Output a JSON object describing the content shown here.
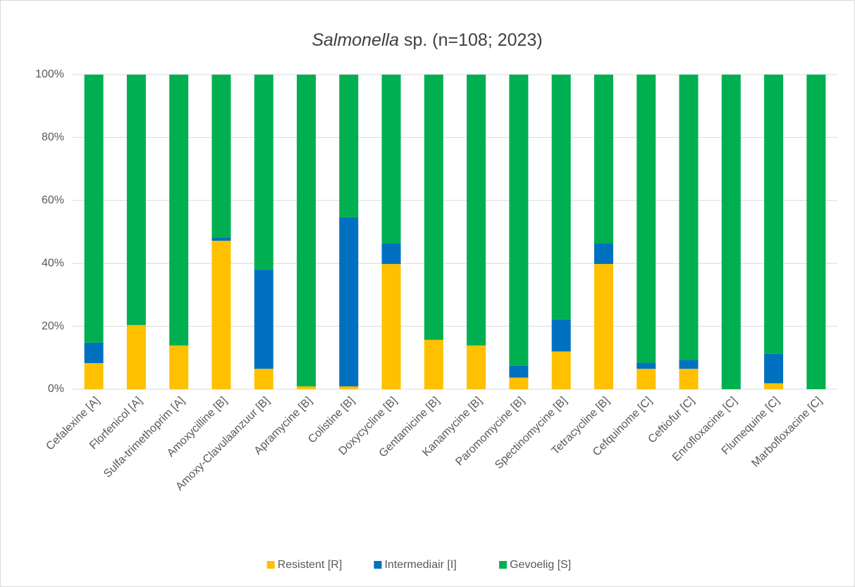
{
  "chart_data": {
    "type": "stacked_bar_100",
    "title": [
      "Salmonella",
      "sp. (n=108; 2023)"
    ],
    "categories": [
      "Cefalexine [A]",
      "Florfenicol [A]",
      "Sulfa-trimethoprim [A]",
      "Amoxycilline  [B]",
      "Amoxy-Clavulaanzuur [B]",
      "Apramycine [B]",
      "Colistine [B]",
      "Doxycycline [B]",
      "Gentamicine [B]",
      "Kanamycine [B]",
      "Paromomycine [B]",
      "Spectinomycine [B]",
      "Tetracycline [B]",
      "Cefquinome [C]",
      "Ceftiofur [C]",
      "Enrofloxacine [C]",
      "Flumequine [C]",
      "Marbofloxacine [C]"
    ],
    "series": [
      {
        "name": "Resistent [R]",
        "color": "#ffc000",
        "values": [
          8.3,
          20.4,
          13.9,
          47.2,
          6.5,
          0.9,
          0.9,
          39.8,
          15.7,
          13.9,
          3.7,
          12.0,
          39.8,
          6.5,
          6.5,
          0,
          1.9,
          0
        ]
      },
      {
        "name": "Intermediair [I]",
        "color": "#0070c0",
        "values": [
          6.5,
          0,
          0,
          0.9,
          31.5,
          0,
          53.7,
          6.5,
          0,
          0,
          3.7,
          10.2,
          6.5,
          1.9,
          2.8,
          0,
          9.3,
          0
        ]
      },
      {
        "name": "Gevoelig [S]",
        "color": "#00b050",
        "values": [
          85.2,
          79.6,
          86.1,
          51.9,
          62.0,
          99.1,
          45.4,
          53.7,
          84.3,
          86.1,
          92.6,
          77.8,
          53.7,
          91.6,
          90.7,
          100,
          88.8,
          100
        ]
      }
    ],
    "ylim": [
      0,
      100
    ],
    "yticks": [
      {
        "value": 0,
        "label": "0%"
      },
      {
        "value": 20,
        "label": "20%"
      },
      {
        "value": 40,
        "label": "40%"
      },
      {
        "value": 60,
        "label": "60%"
      },
      {
        "value": 80,
        "label": "80%"
      },
      {
        "value": 100,
        "label": "100%"
      }
    ],
    "grid": true,
    "legend": "bottom"
  }
}
